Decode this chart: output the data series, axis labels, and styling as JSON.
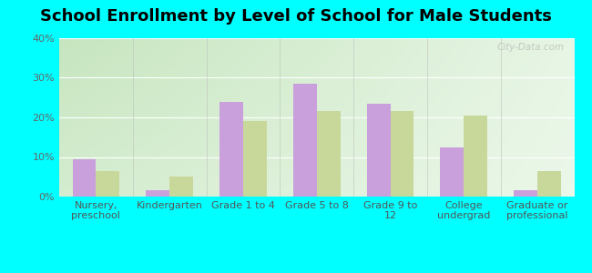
{
  "title": "School Enrollment by Level of School for Male Students",
  "categories": [
    "Nursery,\npreschool",
    "Kindergarten",
    "Grade 1 to 4",
    "Grade 5 to 8",
    "Grade 9 to\n12",
    "College\nundergrad",
    "Graduate or\nprofessional"
  ],
  "lloyd_harbor": [
    9.5,
    1.5,
    24.0,
    28.5,
    23.5,
    12.5,
    1.5
  ],
  "new_york": [
    6.5,
    5.0,
    19.0,
    21.5,
    21.5,
    20.5,
    6.5
  ],
  "lloyd_harbor_color": "#c9a0dc",
  "new_york_color": "#c8d89a",
  "ylim": [
    0,
    40
  ],
  "yticks": [
    0,
    10,
    20,
    30,
    40
  ],
  "ytick_labels": [
    "0%",
    "10%",
    "20%",
    "30%",
    "40%"
  ],
  "background_outer": "#00FFFF",
  "grad_top_left": "#c8e6c0",
  "grad_bottom_right": "#f0faf0",
  "title_fontsize": 13,
  "axis_fontsize": 8,
  "legend_fontsize": 10,
  "watermark_text": "City-Data.com"
}
